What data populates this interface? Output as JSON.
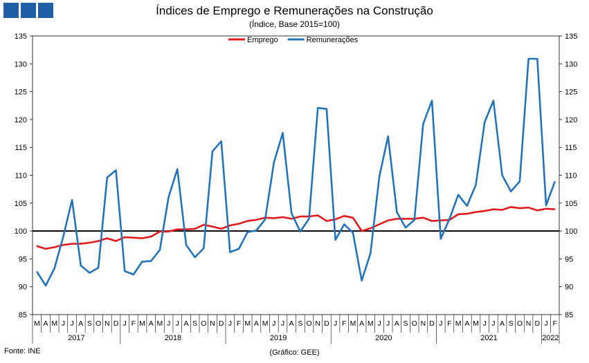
{
  "title": "Índices de Emprego e Remunerações na Construção",
  "subtitle": "(Índice, Base 2015=100)",
  "footer_source": "Fonte: INE",
  "footer_graph": "(Gráfico: GEE)",
  "chart_data": {
    "type": "line",
    "title": "Índices de Emprego e Remunerações na Construção",
    "subtitle": "(Índice, Base 2015=100)",
    "ylim": [
      85,
      135
    ],
    "yticks": [
      85,
      90,
      95,
      100,
      105,
      110,
      115,
      120,
      125,
      130,
      135
    ],
    "reference_line": 100,
    "legend_position": "top-center",
    "month_labels": [
      "M",
      "A",
      "M",
      "J",
      "J",
      "A",
      "S",
      "O",
      "N",
      "D",
      "J",
      "F",
      "M",
      "A",
      "M",
      "J",
      "J",
      "A",
      "S",
      "O",
      "N",
      "D",
      "J",
      "F",
      "M",
      "A",
      "M",
      "J",
      "J",
      "A",
      "S",
      "O",
      "N",
      "D",
      "J",
      "F",
      "M",
      "A",
      "M",
      "J",
      "J",
      "A",
      "S",
      "O",
      "N",
      "D",
      "J",
      "F",
      "M",
      "A",
      "M",
      "J",
      "J",
      "A",
      "S",
      "O",
      "N",
      "D",
      "J",
      "F"
    ],
    "years": [
      {
        "label": "2017",
        "start": 0,
        "end": 9
      },
      {
        "label": "2018",
        "start": 10,
        "end": 21
      },
      {
        "label": "2019",
        "start": 22,
        "end": 33
      },
      {
        "label": "2020",
        "start": 34,
        "end": 45
      },
      {
        "label": "2021",
        "start": 46,
        "end": 57
      },
      {
        "label": "2022",
        "start": 58,
        "end": 59
      }
    ],
    "series": [
      {
        "name": "Emprego",
        "color": "#e31a1c",
        "values": [
          97.3,
          96.8,
          97.1,
          97.5,
          97.7,
          97.7,
          97.9,
          98.2,
          98.7,
          98.2,
          98.9,
          98.8,
          98.7,
          99.0,
          99.9,
          99.9,
          100.3,
          100.3,
          100.4,
          101.1,
          100.8,
          100.4,
          101.0,
          101.3,
          101.8,
          102.0,
          102.4,
          102.3,
          102.5,
          102.2,
          102.6,
          102.6,
          102.8,
          101.8,
          102.1,
          102.7,
          102.4,
          100.0,
          100.5,
          101.2,
          101.9,
          102.2,
          102.2,
          102.2,
          102.4,
          101.8,
          101.9,
          102.0,
          103.0,
          103.1,
          103.4,
          103.6,
          103.9,
          103.8,
          104.3,
          104.1,
          104.2,
          103.7,
          104.0,
          103.9
        ]
      },
      {
        "name": "Remunerações",
        "color": "#2273b9",
        "values": [
          92.7,
          90.2,
          93.3,
          99.0,
          105.6,
          93.8,
          92.5,
          93.4,
          109.6,
          110.9,
          92.8,
          92.2,
          94.5,
          94.6,
          96.6,
          106.1,
          111.1,
          97.5,
          95.3,
          96.9,
          114.3,
          116.1,
          96.2,
          96.8,
          99.8,
          100.1,
          102.1,
          112.3,
          117.6,
          103.2,
          99.9,
          102.2,
          122.1,
          121.9,
          98.4,
          101.2,
          99.7,
          91.1,
          96.0,
          109.7,
          117.0,
          103.4,
          100.6,
          102.0,
          119.2,
          123.4,
          98.6,
          102.2,
          106.5,
          104.5,
          108.3,
          119.5,
          123.4,
          110.0,
          107.1,
          108.9,
          130.9,
          130.9,
          104.6,
          108.9
        ]
      }
    ]
  }
}
